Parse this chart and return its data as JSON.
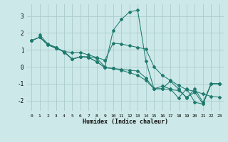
{
  "xlabel": "Humidex (Indice chaleur)",
  "background_color": "#cde8e8",
  "grid_color": "#aacccc",
  "line_color": "#1e7a6e",
  "xlim": [
    -0.5,
    23.5
  ],
  "ylim": [
    -2.6,
    3.7
  ],
  "yticks": [
    -2,
    -1,
    0,
    1,
    2,
    3
  ],
  "xticks": [
    0,
    1,
    2,
    3,
    4,
    5,
    6,
    7,
    8,
    9,
    10,
    11,
    12,
    13,
    14,
    15,
    16,
    17,
    18,
    19,
    20,
    21,
    22,
    23
  ],
  "lines": [
    {
      "x": [
        1,
        2,
        3,
        4,
        5,
        6,
        7,
        8,
        9,
        10,
        11,
        12,
        13,
        14,
        15,
        16,
        17,
        18,
        19,
        20,
        21,
        22,
        23
      ],
      "y": [
        1.9,
        1.35,
        1.15,
        0.85,
        0.45,
        0.6,
        0.6,
        0.5,
        0.0,
        2.15,
        2.8,
        3.25,
        3.35,
        0.35,
        -1.3,
        -1.3,
        -0.85,
        -1.3,
        -1.85,
        -1.3,
        -2.1,
        -1.0,
        -1.0
      ]
    },
    {
      "x": [
        0,
        1,
        2,
        3,
        4,
        5,
        6,
        7,
        8,
        9,
        10,
        11,
        12,
        13,
        14,
        15,
        16,
        17,
        18,
        19,
        20,
        21,
        22,
        23
      ],
      "y": [
        1.55,
        1.75,
        1.35,
        1.15,
        0.9,
        0.85,
        0.85,
        0.7,
        0.55,
        0.4,
        1.4,
        1.35,
        1.25,
        1.15,
        1.05,
        0.0,
        -0.5,
        -0.8,
        -1.1,
        -1.35,
        -1.45,
        -1.6,
        -1.75,
        -1.8
      ]
    },
    {
      "x": [
        0,
        1,
        2,
        3,
        4,
        5,
        6,
        7,
        8,
        9,
        10,
        11,
        12,
        13,
        14,
        15,
        16,
        17,
        18,
        19,
        20,
        21,
        22,
        23
      ],
      "y": [
        1.55,
        1.75,
        1.3,
        1.1,
        0.9,
        0.45,
        0.6,
        0.55,
        0.3,
        -0.05,
        -0.1,
        -0.15,
        -0.2,
        -0.25,
        -0.65,
        -1.3,
        -1.3,
        -1.35,
        -1.4,
        -1.8,
        -1.5,
        -2.2,
        -1.0,
        -1.0
      ]
    },
    {
      "x": [
        0,
        1,
        2,
        3,
        4,
        5,
        6,
        7,
        8,
        9,
        10,
        11,
        12,
        13,
        14,
        15,
        16,
        17,
        18,
        19,
        20,
        21,
        22,
        23
      ],
      "y": [
        1.55,
        1.75,
        1.3,
        1.1,
        0.9,
        0.45,
        0.6,
        0.55,
        0.3,
        -0.05,
        -0.1,
        -0.2,
        -0.35,
        -0.5,
        -0.8,
        -1.3,
        -1.15,
        -1.3,
        -1.85,
        -1.3,
        -2.1,
        -2.2,
        -1.0,
        -1.0
      ]
    }
  ]
}
